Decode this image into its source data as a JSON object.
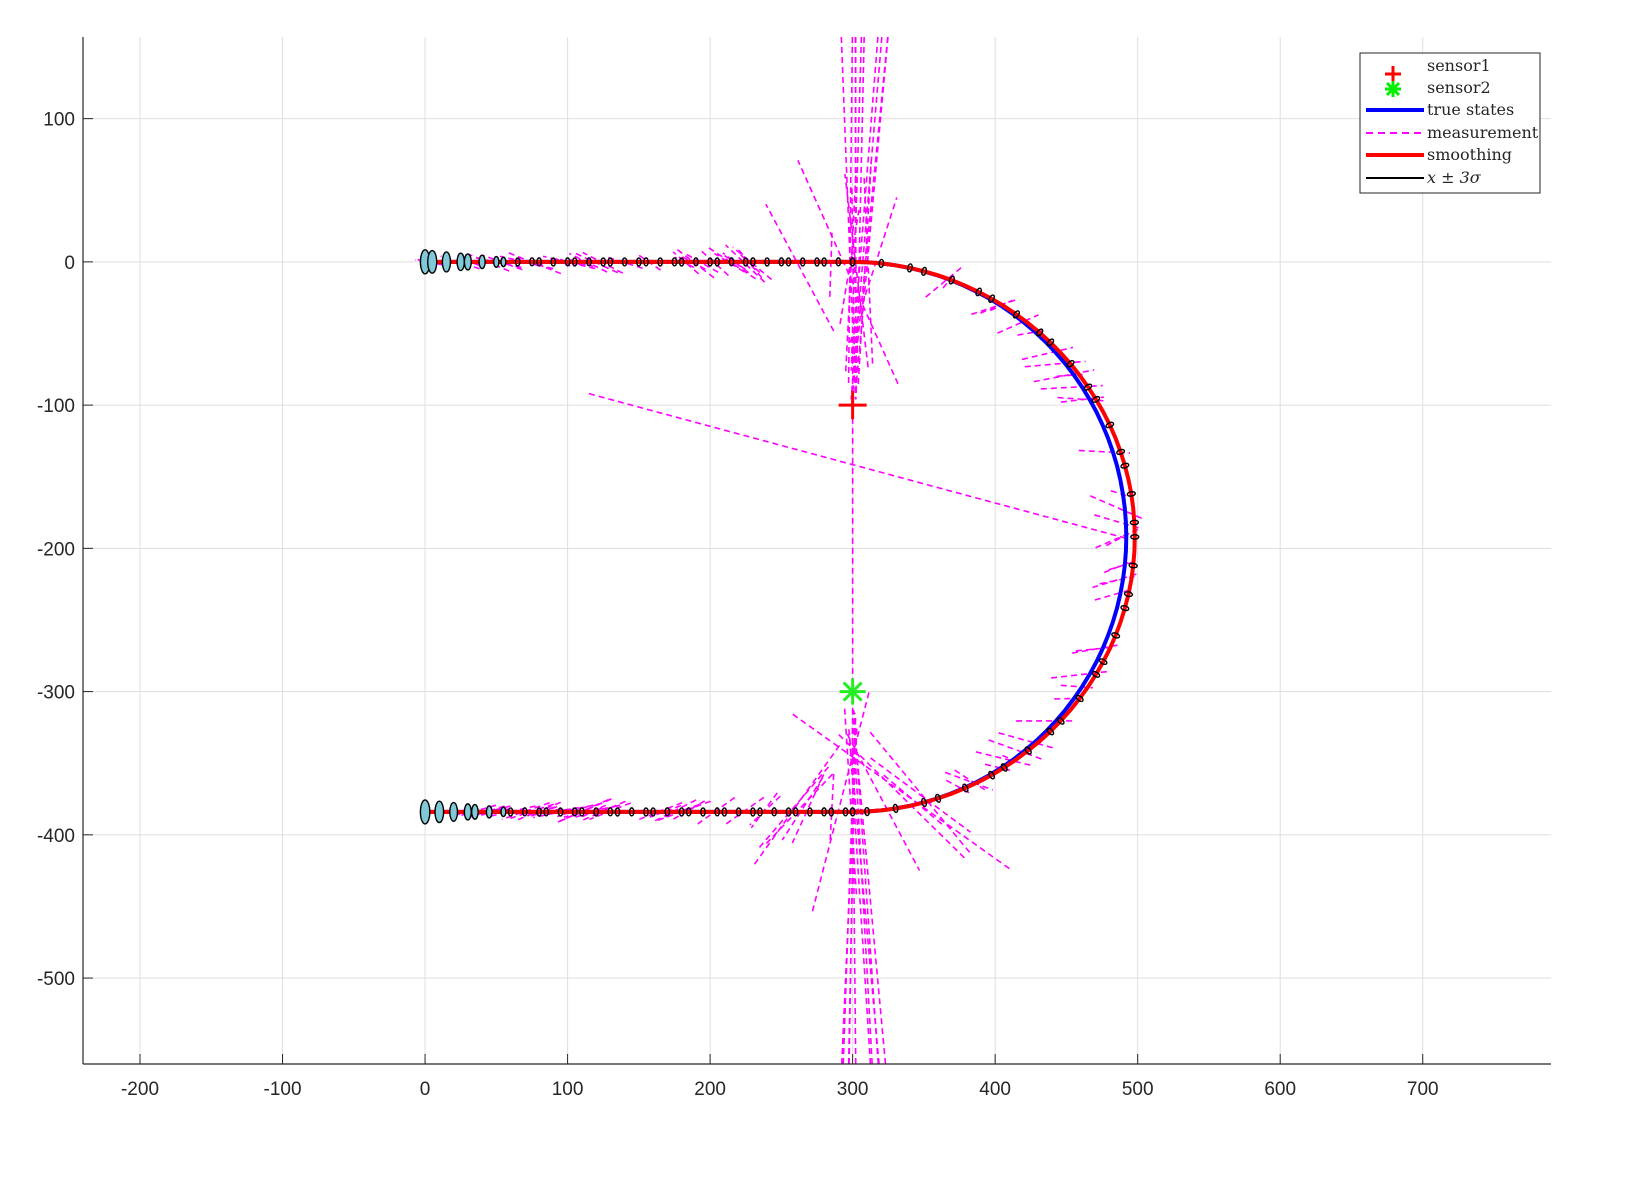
{
  "chart_data": {
    "type": "line",
    "title": "",
    "xlabel": "",
    "ylabel": "",
    "xlim": [
      -240,
      790
    ],
    "ylim": [
      -560,
      157
    ],
    "xticks": [
      -200,
      -100,
      0,
      100,
      200,
      300,
      400,
      500,
      600,
      700
    ],
    "yticks": [
      100,
      0,
      -100,
      -200,
      -300,
      -400,
      -500
    ],
    "xtick_labels": [
      "-200",
      "-100",
      "0",
      "100",
      "200",
      "300",
      "400",
      "500",
      "600",
      "700"
    ],
    "ytick_labels": [
      "100",
      "0",
      "-100",
      "-200",
      "-300",
      "-400",
      "-500"
    ],
    "grid": true,
    "legend_position": "top-right",
    "colors": {
      "sensor1": "#ff0000",
      "sensor2": "#00ff00",
      "true_states": "#0000ff",
      "measurement": "#ff00ff",
      "smoothing": "#ff0000",
      "sigma_band": "#000000",
      "ellipse_fill": "#7fc8d8"
    },
    "legend": [
      {
        "key": "sensor1",
        "label": "sensor1",
        "style": "plus-marker"
      },
      {
        "key": "sensor2",
        "label": "sensor2",
        "style": "star-marker"
      },
      {
        "key": "true_states",
        "label": "true states",
        "style": "solid-line"
      },
      {
        "key": "measurement",
        "label": "measurement",
        "style": "dashed-line"
      },
      {
        "key": "smoothing",
        "label": "smoothing",
        "style": "solid-line"
      },
      {
        "key": "sigma_band",
        "label": "x ± 3σ",
        "style": "thin-line"
      }
    ],
    "sensors": [
      {
        "name": "sensor1",
        "x": 300,
        "y": -100
      },
      {
        "name": "sensor2",
        "x": 300,
        "y": -300
      }
    ],
    "trajectory": {
      "straight_top": {
        "x_start": 0,
        "x_end": 300,
        "y": 0
      },
      "arc": {
        "center_x": 300,
        "center_y": -192,
        "radius_x": 192,
        "radius_y": 192,
        "direction": "clockwise"
      },
      "straight_bottom": {
        "x_start": 300,
        "x_end": 0,
        "y": -384
      }
    },
    "smoothing": {
      "x_offset_on_arc": 6,
      "n_ellipses": 110
    },
    "measurements": {
      "count": 140,
      "outlier_from": [
        115,
        -92
      ],
      "outlier_to": [
        492,
        -193
      ]
    }
  }
}
